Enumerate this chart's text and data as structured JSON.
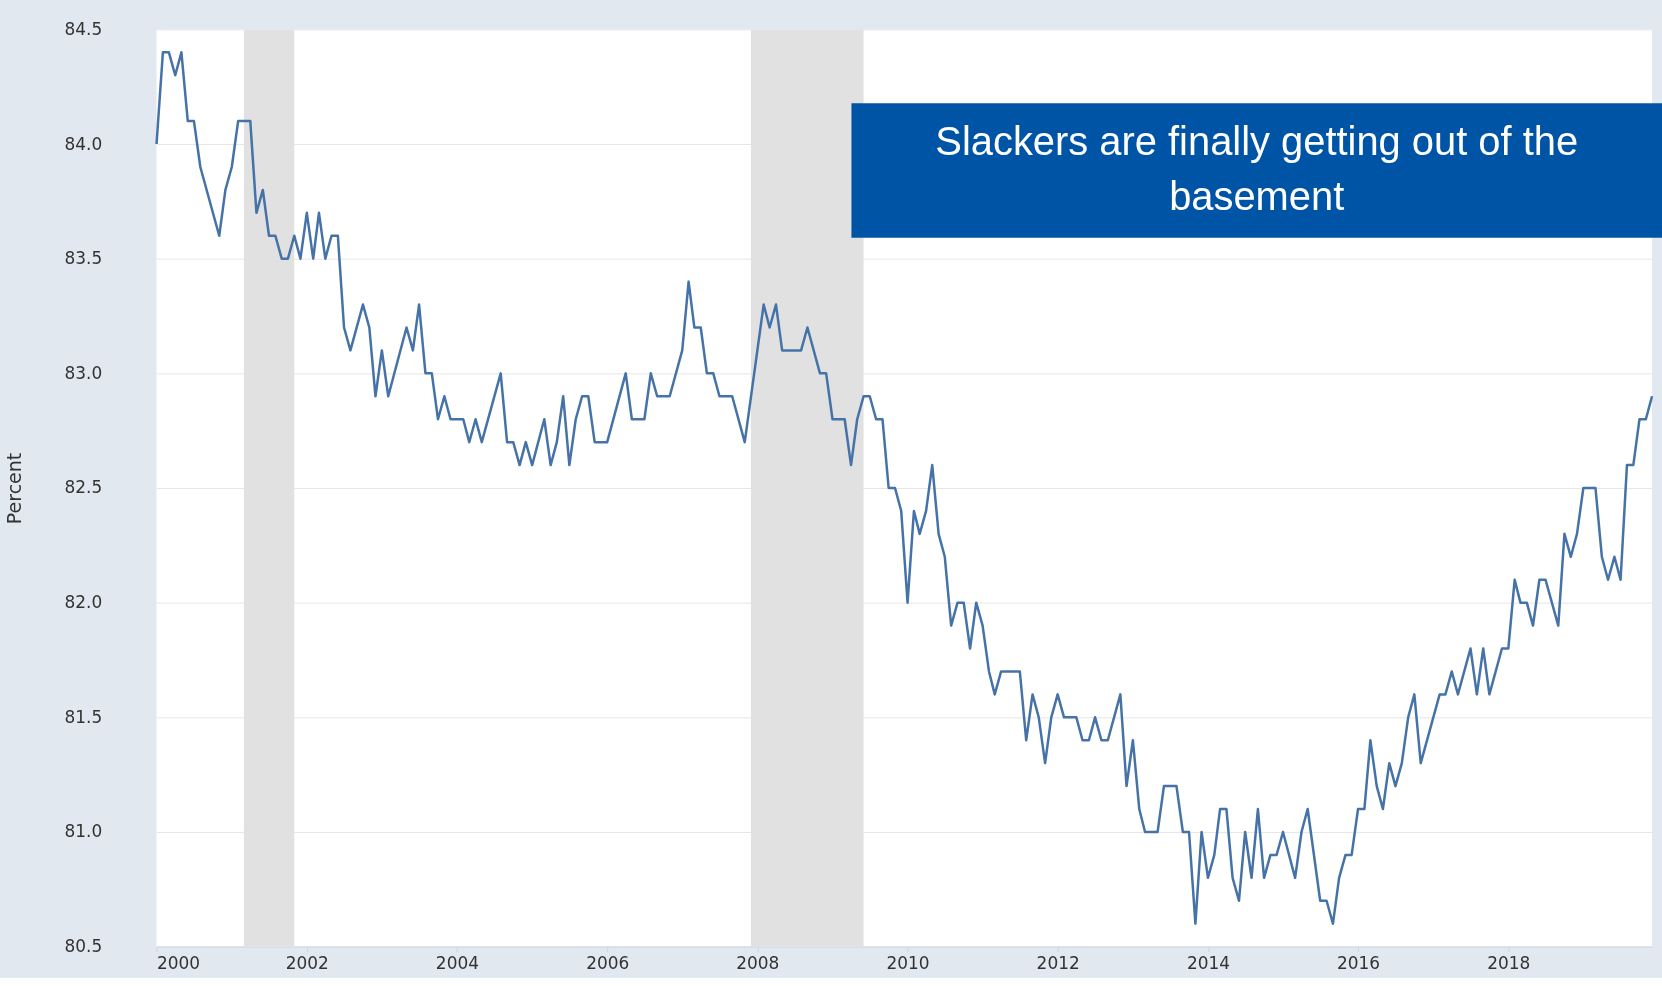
{
  "chart_data": {
    "type": "line",
    "ylabel": "Percent",
    "series": [
      {
        "color": "#4572a7",
        "x": [
          "2000-01",
          "2000-02",
          "2000-03",
          "2000-04",
          "2000-05",
          "2000-06",
          "2000-07",
          "2000-08",
          "2000-11",
          "2000-12",
          "2001-01",
          "2001-02",
          "2001-04",
          "2001-05",
          "2001-06",
          "2001-07",
          "2001-08",
          "2001-09",
          "2001-10",
          "2001-11",
          "2001-12",
          "2002-01",
          "2002-02",
          "2002-03",
          "2002-04",
          "2002-05",
          "2002-06",
          "2002-07",
          "2002-08",
          "2002-10",
          "2002-11",
          "2002-12",
          "2003-01",
          "2003-02",
          "2003-05",
          "2003-06",
          "2003-07",
          "2003-08",
          "2003-09",
          "2003-10",
          "2003-11",
          "2003-12",
          "2004-02",
          "2004-03",
          "2004-04",
          "2004-05",
          "2004-08",
          "2004-09",
          "2004-10",
          "2004-11",
          "2004-12",
          "2005-01",
          "2005-03",
          "2005-04",
          "2005-05",
          "2005-06",
          "2005-07",
          "2005-08",
          "2005-09",
          "2005-10",
          "2005-11",
          "2006-01",
          "2006-04",
          "2006-05",
          "2006-07",
          "2006-08",
          "2006-09",
          "2006-11",
          "2007-01",
          "2007-02",
          "2007-03",
          "2007-04",
          "2007-05",
          "2007-06",
          "2007-07",
          "2007-09",
          "2007-11",
          "2008-02",
          "2008-03",
          "2008-04",
          "2008-05",
          "2008-08",
          "2008-09",
          "2008-11",
          "2008-12",
          "2009-01",
          "2009-03",
          "2009-04",
          "2009-05",
          "2009-06",
          "2009-07",
          "2009-08",
          "2009-09",
          "2009-10",
          "2009-11",
          "2009-12",
          "2010-01",
          "2010-02",
          "2010-03",
          "2010-04",
          "2010-05",
          "2010-06",
          "2010-07",
          "2010-08",
          "2010-09",
          "2010-10",
          "2010-11",
          "2010-12",
          "2011-01",
          "2011-02",
          "2011-03",
          "2011-04",
          "2011-07",
          "2011-08",
          "2011-09",
          "2011-10",
          "2011-11",
          "2011-12",
          "2012-01",
          "2012-02",
          "2012-04",
          "2012-05",
          "2012-06",
          "2012-07",
          "2012-08",
          "2012-09",
          "2012-11",
          "2012-12",
          "2013-01",
          "2013-02",
          "2013-03",
          "2013-05",
          "2013-06",
          "2013-08",
          "2013-09",
          "2013-10",
          "2013-11",
          "2013-12",
          "2014-01",
          "2014-02",
          "2014-03",
          "2014-04",
          "2014-05",
          "2014-06",
          "2014-07",
          "2014-08",
          "2014-09",
          "2014-10",
          "2014-11",
          "2014-12",
          "2015-01",
          "2015-03",
          "2015-04",
          "2015-05",
          "2015-07",
          "2015-08",
          "2015-09",
          "2015-10",
          "2015-11",
          "2015-12",
          "2016-01",
          "2016-02",
          "2016-03",
          "2016-04",
          "2016-05",
          "2016-06",
          "2016-07",
          "2016-08",
          "2016-09",
          "2016-10",
          "2016-11",
          "2017-02",
          "2017-03",
          "2017-04",
          "2017-05",
          "2017-07",
          "2017-08",
          "2017-09",
          "2017-10",
          "2017-12",
          "2018-01",
          "2018-02",
          "2018-03",
          "2018-04",
          "2018-05",
          "2018-06",
          "2018-07",
          "2018-09",
          "2018-10",
          "2018-11",
          "2018-12",
          "2019-01",
          "2019-03",
          "2019-04",
          "2019-05",
          "2019-06",
          "2019-07",
          "2019-08",
          "2019-09",
          "2019-10",
          "2019-11",
          "2019-12"
        ],
        "values": [
          84.0,
          84.4,
          84.4,
          84.3,
          84.4,
          84.1,
          84.1,
          83.9,
          83.6,
          83.8,
          83.9,
          84.1,
          84.1,
          83.7,
          83.8,
          83.6,
          83.6,
          83.5,
          83.5,
          83.6,
          83.5,
          83.7,
          83.5,
          83.7,
          83.5,
          83.6,
          83.6,
          83.2,
          83.1,
          83.3,
          83.2,
          82.9,
          83.1,
          82.9,
          83.2,
          83.1,
          83.3,
          83.0,
          83.0,
          82.8,
          82.9,
          82.8,
          82.8,
          82.7,
          82.8,
          82.7,
          83.0,
          82.7,
          82.7,
          82.6,
          82.7,
          82.6,
          82.8,
          82.6,
          82.7,
          82.9,
          82.6,
          82.8,
          82.9,
          82.9,
          82.7,
          82.7,
          83.0,
          82.8,
          82.8,
          83.0,
          82.9,
          82.9,
          83.1,
          83.4,
          83.2,
          83.2,
          83.0,
          83.0,
          82.9,
          82.9,
          82.7,
          83.3,
          83.2,
          83.3,
          83.1,
          83.1,
          83.2,
          83.0,
          83.0,
          82.8,
          82.8,
          82.6,
          82.8,
          82.9,
          82.9,
          82.8,
          82.8,
          82.5,
          82.5,
          82.4,
          82.0,
          82.4,
          82.3,
          82.4,
          82.6,
          82.3,
          82.2,
          81.9,
          82.0,
          82.0,
          81.8,
          82.0,
          81.9,
          81.7,
          81.6,
          81.7,
          81.7,
          81.4,
          81.6,
          81.5,
          81.3,
          81.5,
          81.6,
          81.5,
          81.5,
          81.4,
          81.4,
          81.5,
          81.4,
          81.4,
          81.6,
          81.2,
          81.4,
          81.1,
          81.0,
          81.0,
          81.2,
          81.2,
          81.0,
          81.0,
          80.6,
          81.0,
          80.8,
          80.9,
          81.1,
          81.1,
          80.8,
          80.7,
          81.0,
          80.8,
          81.1,
          80.8,
          80.9,
          80.9,
          81.0,
          80.8,
          81.0,
          81.1,
          80.7,
          80.7,
          80.6,
          80.8,
          80.9,
          80.9,
          81.1,
          81.1,
          81.4,
          81.2,
          81.1,
          81.3,
          81.2,
          81.3,
          81.5,
          81.6,
          81.3,
          81.6,
          81.6,
          81.7,
          81.6,
          81.8,
          81.6,
          81.8,
          81.6,
          81.8,
          81.8,
          82.1,
          82.0,
          82.0,
          81.9,
          82.1,
          82.1,
          81.9,
          82.3,
          82.2,
          82.3,
          82.5,
          82.5,
          82.2,
          82.1,
          82.2,
          82.1,
          82.6,
          82.6,
          82.8,
          82.8,
          82.9
        ]
      }
    ],
    "xlim": [
      "2000-01",
      "2019-12"
    ],
    "xticks": [
      "2000",
      "2002",
      "2004",
      "2006",
      "2008",
      "2010",
      "2012",
      "2014",
      "2016",
      "2018"
    ],
    "ylim": [
      80.5,
      84.5
    ],
    "yticks": [
      {
        "value": 80.5,
        "label": "80.5"
      },
      {
        "value": 81,
        "label": "81.0"
      },
      {
        "value": 81.5,
        "label": "81.5"
      },
      {
        "value": 82,
        "label": "82.0"
      },
      {
        "value": 82.5,
        "label": "82.5"
      },
      {
        "value": 83,
        "label": "83.0"
      },
      {
        "value": 83.5,
        "label": "83.5"
      },
      {
        "value": 84,
        "label": "84.0"
      },
      {
        "value": 84.5,
        "label": "84.5"
      }
    ],
    "bands": [
      {
        "axis": "x",
        "from": "2001-03",
        "to": "2001-11",
        "color": "#e1e1e1"
      },
      {
        "axis": "x",
        "from": "2007-12",
        "to": "2009-06",
        "color": "#e1e1e1"
      }
    ],
    "annotations": [
      "Slackers are finally getting out of the basement"
    ],
    "grid": "y",
    "legend": false
  }
}
